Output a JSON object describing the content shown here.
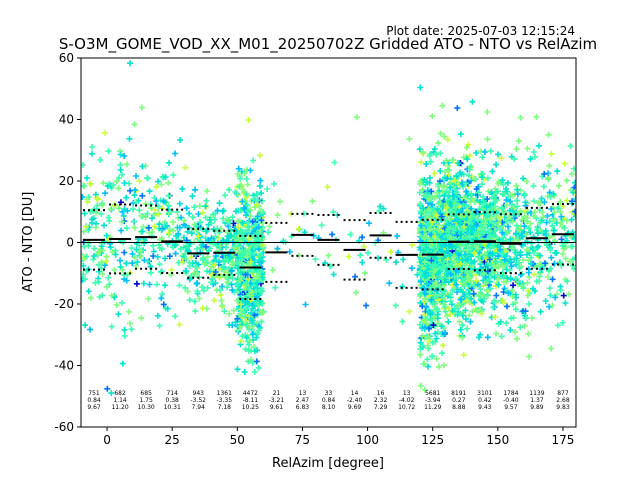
{
  "plot_date": "Plot date: 2025-07-03 12:15:24",
  "chart_data": {
    "type": "scatter",
    "title": "S-O3M_GOME_VOD_XX_M01_20250702Z Gridded ATO - NTO vs RelAzim",
    "xlabel": "RelAzim [degree]",
    "ylabel": "ATO - NTO [DU]",
    "xlim": [
      -10,
      180
    ],
    "ylim": [
      -60,
      60
    ],
    "xticks": [
      0,
      25,
      50,
      75,
      100,
      125,
      150,
      175
    ],
    "yticks": [
      -60,
      -40,
      -20,
      0,
      20,
      40,
      60
    ],
    "grid": false,
    "zero_line": 0,
    "bin_width": 10,
    "bins": [
      {
        "x": -5,
        "count": "751",
        "mean": "0.84",
        "std": "9.67",
        "mean_value": 0.84,
        "std_value": 9.67
      },
      {
        "x": 5,
        "count": "682",
        "mean": "1.14",
        "std": "11.20",
        "mean_value": 1.14,
        "std_value": 11.2
      },
      {
        "x": 15,
        "count": "685",
        "mean": "1.75",
        "std": "10.30",
        "mean_value": 1.75,
        "std_value": 10.3
      },
      {
        "x": 25,
        "count": "714",
        "mean": "0.38",
        "std": "10.31",
        "mean_value": 0.38,
        "std_value": 10.31
      },
      {
        "x": 35,
        "count": "943",
        "mean": "-3.52",
        "std": "7.94",
        "mean_value": -3.52,
        "std_value": 7.94
      },
      {
        "x": 45,
        "count": "1361",
        "mean": "-3.35",
        "std": "7.18",
        "mean_value": -3.35,
        "std_value": 7.18
      },
      {
        "x": 55,
        "count": "4472",
        "mean": "-8.11",
        "std": "10.25",
        "mean_value": -8.11,
        "std_value": 10.25
      },
      {
        "x": 65,
        "count": "21",
        "mean": "-3.21",
        "std": "9.61",
        "mean_value": -3.21,
        "std_value": 9.61
      },
      {
        "x": 75,
        "count": "13",
        "mean": "2.47",
        "std": "6.83",
        "mean_value": 2.47,
        "std_value": 6.83
      },
      {
        "x": 85,
        "count": "33",
        "mean": "0.84",
        "std": "8.10",
        "mean_value": 0.84,
        "std_value": 8.1
      },
      {
        "x": 95,
        "count": "14",
        "mean": "-2.40",
        "std": "9.69",
        "mean_value": -2.4,
        "std_value": 9.69
      },
      {
        "x": 105,
        "count": "16",
        "mean": "2.32",
        "std": "7.29",
        "mean_value": 2.32,
        "std_value": 7.29
      },
      {
        "x": 115,
        "count": "13",
        "mean": "-4.02",
        "std": "10.72",
        "mean_value": -4.02,
        "std_value": 10.72
      },
      {
        "x": 125,
        "count": "5681",
        "mean": "-3.94",
        "std": "11.29",
        "mean_value": -3.94,
        "std_value": 11.29
      },
      {
        "x": 135,
        "count": "8191",
        "mean": "0.27",
        "std": "8.88",
        "mean_value": 0.27,
        "std_value": 8.88
      },
      {
        "x": 145,
        "count": "3101",
        "mean": "0.42",
        "std": "9.43",
        "mean_value": 0.42,
        "std_value": 9.43
      },
      {
        "x": 155,
        "count": "1784",
        "mean": "-0.40",
        "std": "9.57",
        "mean_value": -0.4,
        "std_value": 9.57
      },
      {
        "x": 165,
        "count": "1139",
        "mean": "1.37",
        "std": "9.89",
        "mean_value": 1.37,
        "std_value": 9.89
      },
      {
        "x": 175,
        "count": "877",
        "mean": "2.68",
        "std": "9.83",
        "mean_value": 2.68,
        "std_value": 9.83
      }
    ],
    "colors": {
      "mean_line": "#000000",
      "std_line": "#000000",
      "zero_line": "#000000",
      "scatter_palette": [
        "#0000cd",
        "#0072ff",
        "#00bfff",
        "#00e5cc",
        "#3dffb0",
        "#7fff7f",
        "#c8ff3a",
        "#ffe600",
        "#ffb000"
      ]
    }
  }
}
